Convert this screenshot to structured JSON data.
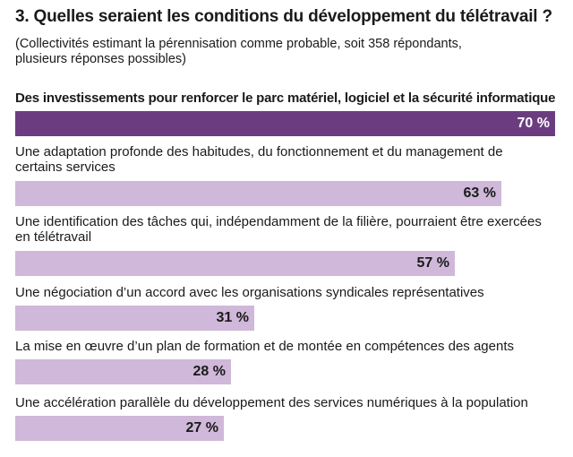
{
  "chart_data": {
    "type": "bar",
    "orientation": "horizontal",
    "title": "3. Quelles seraient les conditions du développement du télétravail ?",
    "subtitle": "(Collectivités estimant la pérennisation comme probable, soit 358 répondants, plusieurs réponses possibles)",
    "categories": [
      "Des investissements pour renforcer le parc matériel, logiciel et la sécurité informatique",
      "Une adaptation profonde des habitudes, du fonctionnement et du management de certains services",
      "Une identification des tâches qui, indépendamment de la filière, pourraient être exercées en télétravail",
      "Une négociation d’un accord avec les organisations syndicales représentatives",
      "La mise en œuvre d’un plan de formation et de montée en compétences des agents",
      "Une accélération parallèle du développement des services numériques à la population"
    ],
    "values": [
      70,
      63,
      57,
      31,
      28,
      27
    ],
    "value_labels": [
      "70 %",
      "63 %",
      "57 %",
      "31 %",
      "28 %",
      "27 %"
    ],
    "unit": "%",
    "xlim": [
      0,
      70
    ],
    "grid": false,
    "legend": "none",
    "highlight_index": 0,
    "colors": {
      "highlight": "#6b3d80",
      "bar": "#cfb8d9",
      "highlight_text": "#ffffff",
      "text": "#1a1a1a"
    }
  }
}
